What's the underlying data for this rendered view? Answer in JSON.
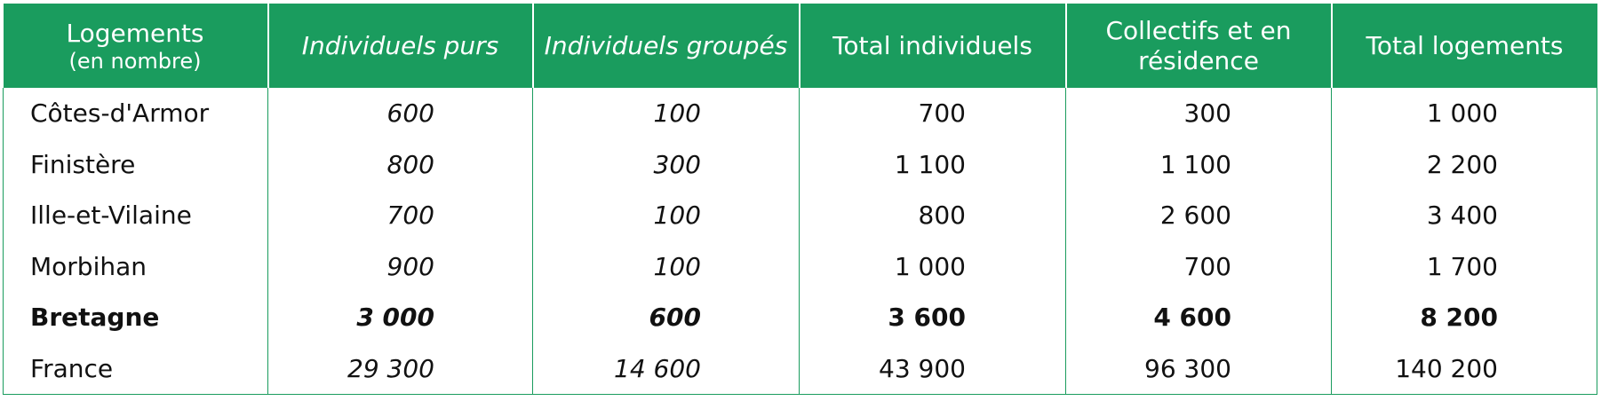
{
  "header": {
    "col0_title": "Logements",
    "col0_subtitle": "(en nombre)",
    "col1": "Individuels purs",
    "col2": "Individuels groupés",
    "col3": "Total individuels",
    "col4": "Collectifs et en résidence",
    "col5": "Total logements"
  },
  "rows": [
    {
      "label": "Côtes-d'Armor",
      "purs": "600",
      "groupes": "100",
      "total_ind": "700",
      "collectifs": "300",
      "total": "1 000"
    },
    {
      "label": "Finistère",
      "purs": "800",
      "groupes": "300",
      "total_ind": "1 100",
      "collectifs": "1 100",
      "total": "2 200"
    },
    {
      "label": "Ille-et-Vilaine",
      "purs": "700",
      "groupes": "100",
      "total_ind": "800",
      "collectifs": "2 600",
      "total": "3 400"
    },
    {
      "label": "Morbihan",
      "purs": "900",
      "groupes": "100",
      "total_ind": "1 000",
      "collectifs": "700",
      "total": "1 700"
    },
    {
      "label": "Bretagne",
      "purs": "3 000",
      "groupes": "600",
      "total_ind": "3 600",
      "collectifs": "4 600",
      "total": "8 200"
    },
    {
      "label": "France",
      "purs": "29 300",
      "groupes": "14 600",
      "total_ind": "43 900",
      "collectifs": "96 300",
      "total": "140 200"
    }
  ],
  "colors": {
    "header_bg": "#1a9c5e",
    "header_text": "#ffffff",
    "grid": "#1a9c5e"
  }
}
